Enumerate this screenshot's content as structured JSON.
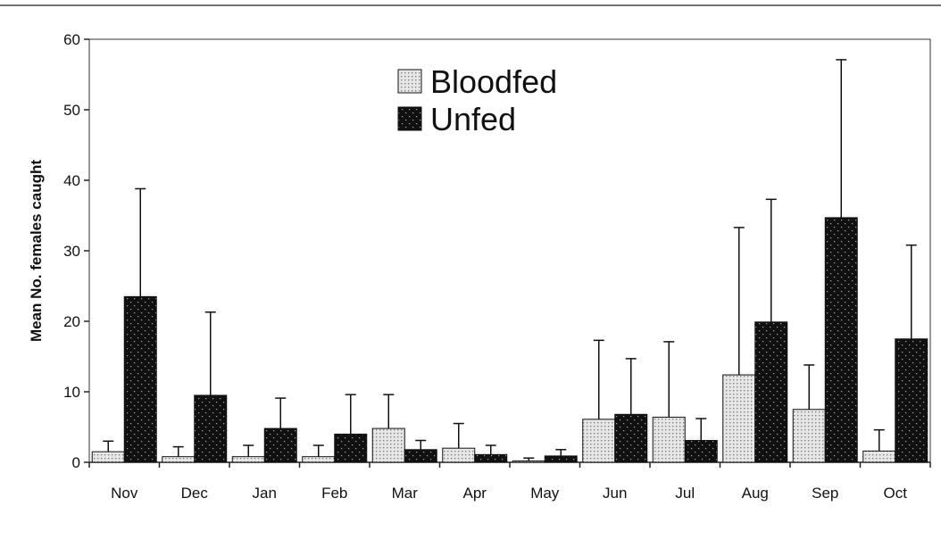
{
  "chart_data": {
    "type": "bar",
    "ylabel": "Mean No. females caught",
    "categories": [
      "Nov",
      "Dec",
      "Jan",
      "Feb",
      "Mar",
      "Apr",
      "May",
      "Jun",
      "Jul",
      "Aug",
      "Sep",
      "Oct"
    ],
    "series": [
      {
        "name": "Bloodfed",
        "color": "#d4d4d4",
        "values": [
          1.5,
          0.8,
          0.8,
          0.8,
          4.8,
          2.0,
          0.2,
          6.1,
          6.4,
          12.4,
          7.5,
          1.6
        ],
        "errors": [
          1.5,
          1.4,
          1.6,
          1.6,
          4.8,
          3.5,
          0.4,
          11.2,
          10.7,
          20.9,
          6.3,
          3.0
        ]
      },
      {
        "name": "Unfed",
        "color": "#111111",
        "values": [
          23.5,
          9.5,
          4.8,
          4.0,
          1.8,
          1.1,
          0.9,
          6.8,
          3.1,
          19.9,
          34.7,
          17.5
        ],
        "errors": [
          15.3,
          11.8,
          4.3,
          5.6,
          1.3,
          1.3,
          0.9,
          7.9,
          3.1,
          17.4,
          22.4,
          13.3
        ]
      }
    ],
    "ylim": [
      0,
      60
    ],
    "yticks": [
      0,
      10,
      20,
      30,
      40,
      50,
      60
    ],
    "legend": "top"
  }
}
